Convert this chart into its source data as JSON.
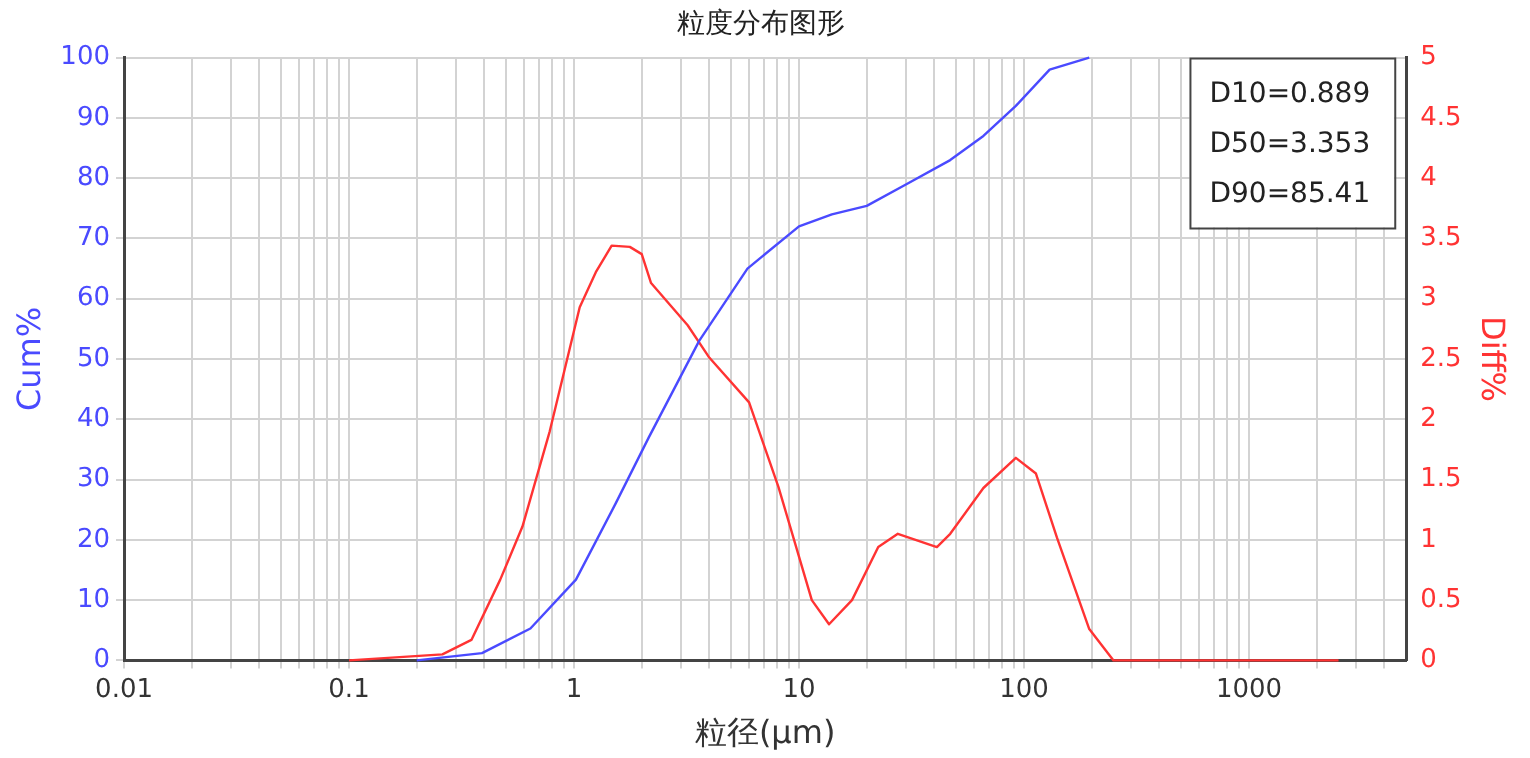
{
  "chart_data": {
    "type": "line",
    "title": "粒度分布图形",
    "xlabel": "粒径(μm)",
    "ylabel": "Cum%",
    "y2label": "Diff%",
    "log": "x",
    "grid": true,
    "legend": false,
    "marker": "none",
    "line_style": "solid",
    "xlim": [
      0.01,
      5000
    ],
    "xticks": [
      0.01,
      {
        "value": 0.02,
        "label": null
      },
      {
        "value": 0.03,
        "label": null
      },
      {
        "value": 0.04,
        "label": null
      },
      {
        "value": 0.05,
        "label": null
      },
      {
        "value": 0.06,
        "label": null
      },
      {
        "value": 0.07,
        "label": null
      },
      {
        "value": 0.08,
        "label": null
      },
      {
        "value": 0.09,
        "label": null
      },
      0.1,
      {
        "value": 0.2,
        "label": null
      },
      {
        "value": 0.3,
        "label": null
      },
      {
        "value": 0.4,
        "label": null
      },
      {
        "value": 0.5,
        "label": null
      },
      {
        "value": 0.6,
        "label": null
      },
      {
        "value": 0.7,
        "label": null
      },
      {
        "value": 0.8,
        "label": null
      },
      {
        "value": 0.9,
        "label": null
      },
      1,
      {
        "value": 2,
        "label": null
      },
      {
        "value": 3,
        "label": null
      },
      {
        "value": 4,
        "label": null
      },
      {
        "value": 5,
        "label": null
      },
      {
        "value": 6,
        "label": null
      },
      {
        "value": 7,
        "label": null
      },
      {
        "value": 8,
        "label": null
      },
      {
        "value": 9,
        "label": null
      },
      10,
      {
        "value": 20,
        "label": null
      },
      {
        "value": 30,
        "label": null
      },
      {
        "value": 40,
        "label": null
      },
      {
        "value": 50,
        "label": null
      },
      {
        "value": 60,
        "label": null
      },
      {
        "value": 70,
        "label": null
      },
      {
        "value": 80,
        "label": null
      },
      {
        "value": 90,
        "label": null
      },
      100,
      {
        "value": 200,
        "label": null
      },
      {
        "value": 300,
        "label": null
      },
      {
        "value": 400,
        "label": null
      },
      {
        "value": 500,
        "label": null
      },
      {
        "value": 600,
        "label": null
      },
      {
        "value": 700,
        "label": null
      },
      {
        "value": 800,
        "label": null
      },
      {
        "value": 900,
        "label": null
      },
      1000,
      {
        "value": 2000,
        "label": null
      },
      {
        "value": 3000,
        "label": null
      },
      {
        "value": 4000,
        "label": null
      }
    ],
    "ylim": [
      0,
      100
    ],
    "yticks": [
      0,
      10,
      20,
      30,
      40,
      50,
      60,
      70,
      80,
      90,
      100
    ],
    "y2lim": [
      0,
      5
    ],
    "y2ticks": [
      0,
      0.5,
      1,
      1.5,
      2,
      2.5,
      3,
      3.5,
      4,
      4.5,
      5
    ],
    "series": [
      {
        "color": "#4a4aff",
        "x": [
          0.2,
          0.39,
          0.64,
          1.02,
          1.53,
          2.15,
          3.6,
          5.9,
          10,
          14,
          20,
          30,
          47,
          66,
          92,
          130,
          195
        ],
        "values": [
          0,
          1.2,
          5.3,
          13.4,
          26,
          37,
          53,
          65,
          72,
          74,
          75.4,
          79,
          83,
          87,
          92,
          98,
          100
        ]
      },
      {
        "color": "#ff3333",
        "axis": "y2",
        "x": [
          0.1,
          0.26,
          0.35,
          0.47,
          0.59,
          0.78,
          1.06,
          1.25,
          1.47,
          1.77,
          2.0,
          2.2,
          3.2,
          4.0,
          6.0,
          8.1,
          11.4,
          13.6,
          17.2,
          22.5,
          27.5,
          41,
          47,
          66,
          92,
          113,
          140,
          195,
          250,
          2500
        ],
        "values": [
          0,
          0.05,
          0.17,
          0.67,
          1.11,
          1.9,
          2.93,
          3.22,
          3.44,
          3.43,
          3.37,
          3.13,
          2.78,
          2.51,
          2.14,
          1.44,
          0.5,
          0.3,
          0.5,
          0.94,
          1.05,
          0.94,
          1.05,
          1.43,
          1.68,
          1.55,
          1.02,
          0.26,
          0,
          0
        ]
      }
    ],
    "annotations": [
      "D10=0.889",
      "D50=3.353",
      "D90=85.41"
    ]
  }
}
